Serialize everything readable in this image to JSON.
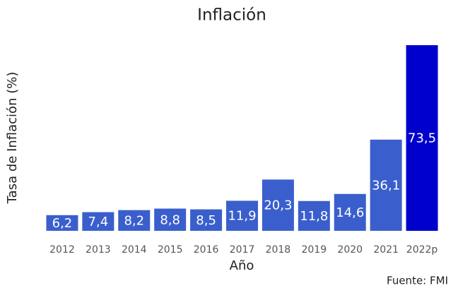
{
  "chart_data": {
    "type": "bar",
    "title": "Inflación",
    "x_label": "Año",
    "y_label": "Tasa de Inflación (%)",
    "source": "Fuente: FMI",
    "categories": [
      "2012",
      "2013",
      "2014",
      "2015",
      "2016",
      "2017",
      "2018",
      "2019",
      "2020",
      "2021",
      "2022p"
    ],
    "values": [
      6.2,
      7.4,
      8.2,
      8.8,
      8.5,
      11.9,
      20.3,
      11.8,
      14.6,
      36.1,
      73.5
    ],
    "value_labels": [
      "6,2",
      "7,4",
      "8,2",
      "8,8",
      "8,5",
      "11,9",
      "20,3",
      "11,8",
      "14,6",
      "36,1",
      "73,5"
    ],
    "colors": [
      "#3a5fcd",
      "#3a5fcd",
      "#3a5fcd",
      "#3a5fcd",
      "#3a5fcd",
      "#3a5fcd",
      "#3a5fcd",
      "#3a5fcd",
      "#3a5fcd",
      "#3a5fcd",
      "#0000cd"
    ],
    "ylim": [
      0,
      73.5
    ]
  }
}
